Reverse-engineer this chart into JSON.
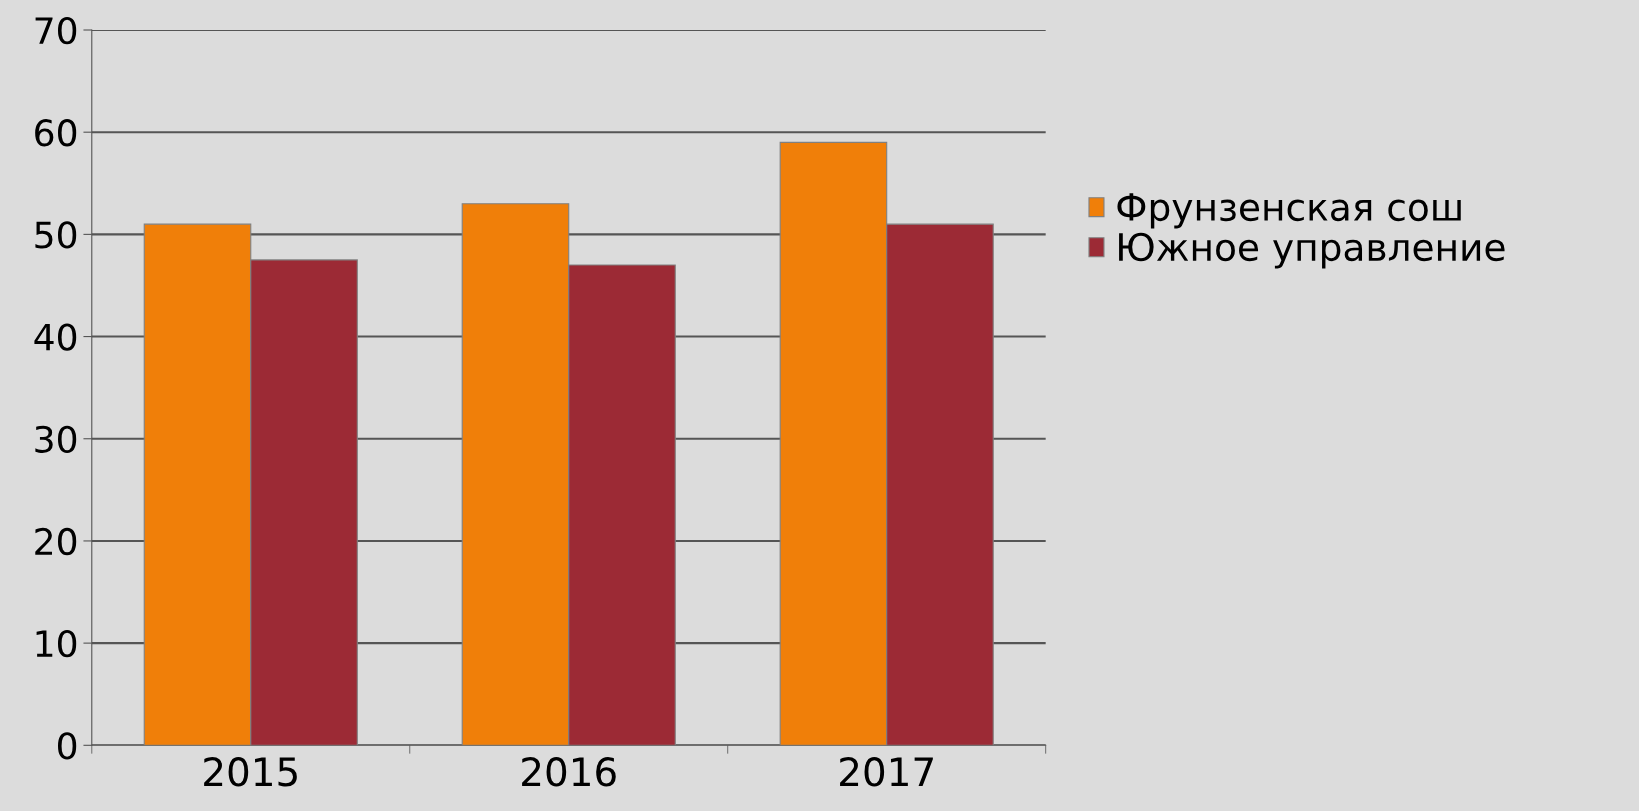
{
  "chart_data": {
    "type": "bar",
    "categories": [
      "2015",
      "2016",
      "2017"
    ],
    "series": [
      {
        "name": "Фрунзенская сош",
        "color": "#f07f09",
        "values": [
          51,
          53,
          59
        ]
      },
      {
        "name": "Южное управление",
        "color": "#9c2a35",
        "values": [
          47.5,
          47,
          51
        ]
      }
    ],
    "ylim": [
      0,
      70
    ],
    "yticks": [
      0,
      10,
      20,
      30,
      40,
      50,
      60,
      70
    ],
    "grid": "y",
    "legend": "right"
  }
}
